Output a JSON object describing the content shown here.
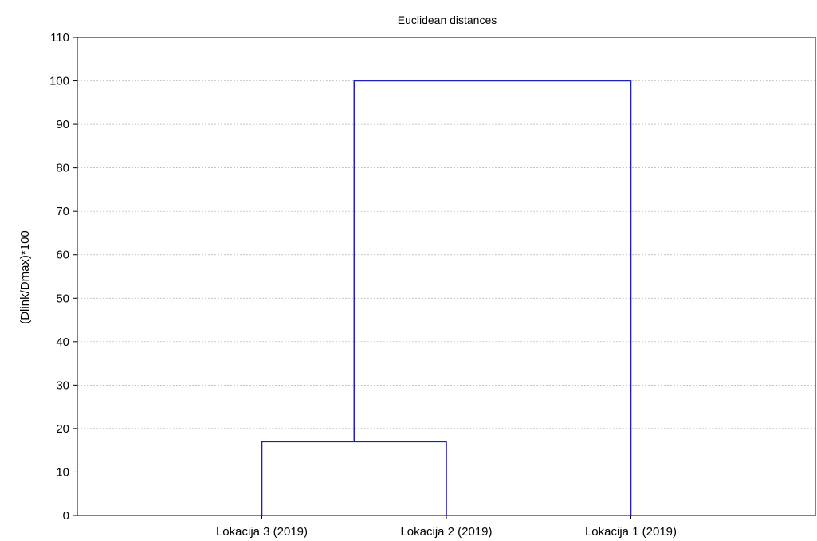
{
  "chart_data": {
    "type": "dendrogram",
    "title": "Euclidean distances",
    "xlabel": "",
    "ylabel": "(Dlink/Dmax)*100",
    "ylim": [
      0,
      110
    ],
    "yticks": [
      "0",
      "10",
      "20",
      "30",
      "40",
      "50",
      "60",
      "70",
      "80",
      "90",
      "100",
      "110"
    ],
    "grid": true,
    "categories": [
      "Lokacija 3  (2019)",
      "Lokacija 2 (2019)",
      "Lokacija 1 (2019)"
    ],
    "merges": [
      {
        "left": "Lokacija 3  (2019)",
        "right": "Lokacija 2 (2019)",
        "height": 17
      },
      {
        "left": "Lokacija 3  (2019) + Lokacija 2 (2019)",
        "right": "Lokacija 1 (2019)",
        "height": 100
      }
    ],
    "line_color": "#1f1fbf"
  }
}
